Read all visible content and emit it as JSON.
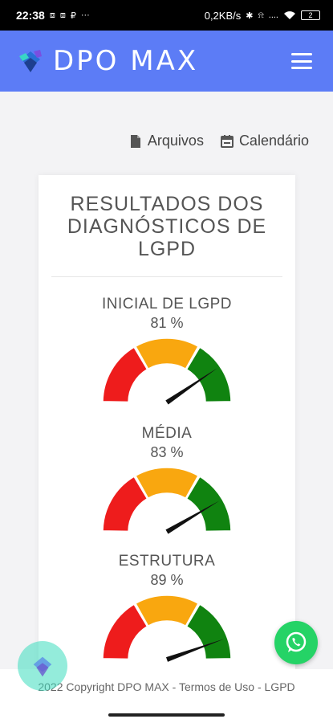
{
  "status_bar": {
    "time": "22:38",
    "left_icons": [
      "⧈",
      "⧈",
      "₽",
      "···"
    ],
    "network_speed": "0,2KB/s",
    "right_icons": [
      "✱",
      "⍾",
      "....",
      "wifi"
    ],
    "battery": "2"
  },
  "app_bar": {
    "brand_name": "DPO MAX",
    "brand_color": "#5c7cf6"
  },
  "top_links": {
    "files_label": "Arquivos",
    "calendar_label": "Calendário"
  },
  "card": {
    "title": "RESULTADOS DOS DIAGNÓSTICOS DE LGPD"
  },
  "gauges": [
    {
      "label": "INICIAL DE LGPD",
      "value_text": "81 %",
      "value": 81
    },
    {
      "label": "MÉDIA",
      "value_text": "83 %",
      "value": 83
    },
    {
      "label": "ESTRUTURA",
      "value_text": "89 %",
      "value": 89
    }
  ],
  "gauge_colors": {
    "red": "#ee1c1c",
    "amber": "#f9a70f",
    "green": "#108310",
    "needle": "#111111"
  },
  "footer": {
    "text": "2022 Copyright DPO MAX - Termos de Uso - LGPD"
  }
}
